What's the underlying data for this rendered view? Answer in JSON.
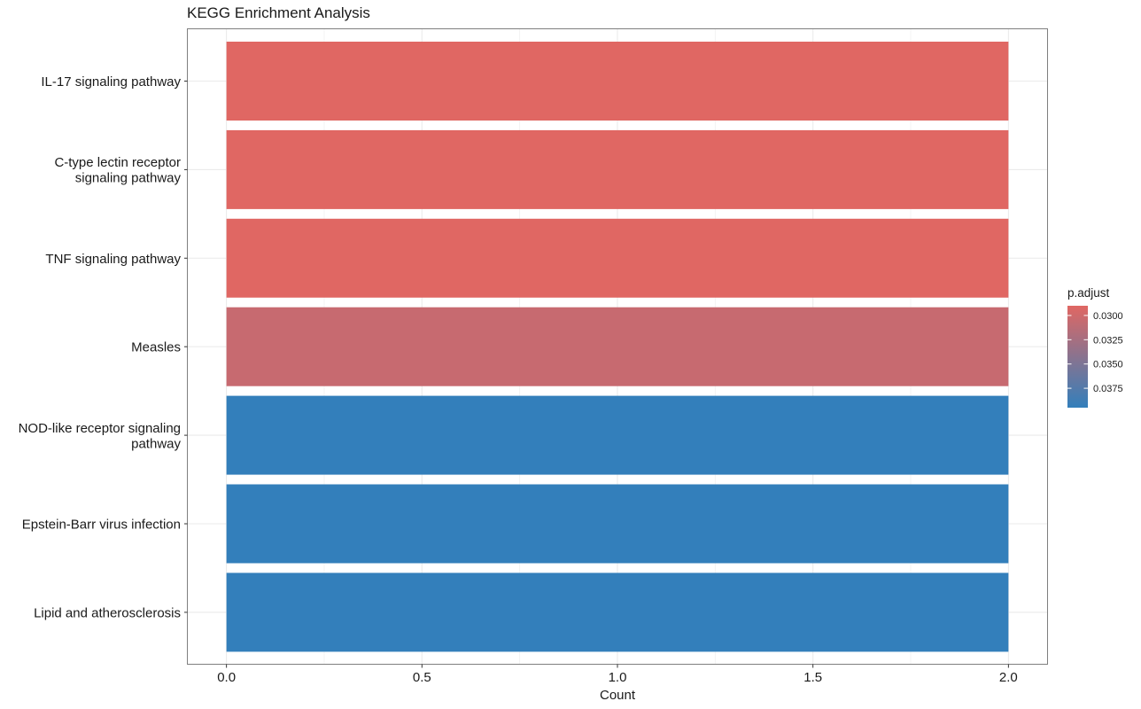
{
  "chart_data": {
    "type": "bar",
    "orientation": "horizontal",
    "title": "KEGG Enrichment Analysis",
    "xlabel": "Count",
    "ylabel": "",
    "xlim": [
      -0.1,
      2.1
    ],
    "x_ticks": [
      0.0,
      0.5,
      1.0,
      1.5,
      2.0
    ],
    "x_tick_labels": [
      "0.0",
      "0.5",
      "1.0",
      "1.5",
      "2.0"
    ],
    "grid": true,
    "categories": [
      [
        "IL-17 signaling pathway"
      ],
      [
        "C-type lectin receptor",
        "signaling pathway"
      ],
      [
        "TNF signaling pathway"
      ],
      [
        "Measles"
      ],
      [
        "NOD-like receptor signaling",
        "pathway"
      ],
      [
        "Epstein-Barr virus infection"
      ],
      [
        "Lipid and atherosclerosis"
      ]
    ],
    "values": [
      2,
      2,
      2,
      2,
      2,
      2,
      2
    ],
    "p_adjust": [
      0.029,
      0.029,
      0.029,
      0.0305,
      0.0395,
      0.0395,
      0.0395
    ],
    "legend": {
      "title": "p.adjust",
      "placement": "right",
      "color_low": "#e06763",
      "color_high": "#337fbb",
      "range": [
        0.029,
        0.0395
      ],
      "ticks": [
        0.03,
        0.0325,
        0.035,
        0.0375
      ],
      "tick_labels": [
        "0.0300",
        "0.0325",
        "0.0350",
        "0.0375"
      ]
    }
  }
}
